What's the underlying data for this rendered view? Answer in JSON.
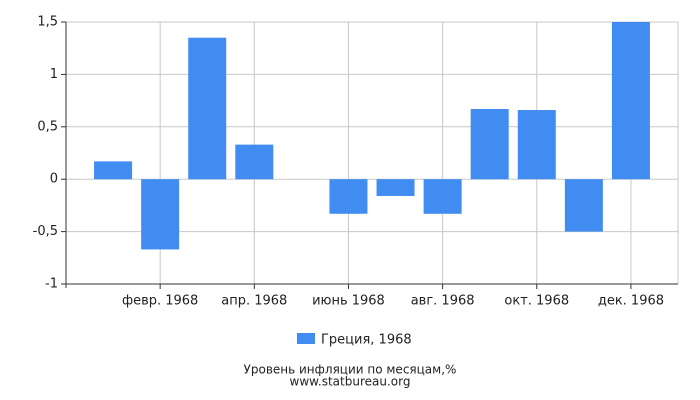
{
  "chart_data": {
    "type": "bar",
    "categories": [
      null,
      "февр. 1968",
      null,
      "апр. 1968",
      null,
      "июнь 1968",
      null,
      "авг. 1968",
      null,
      "окт. 1968",
      null,
      "дек. 1968"
    ],
    "series": [
      {
        "name": "Греция, 1968",
        "color": "#418cf0",
        "values": [
          0.17,
          -0.67,
          1.35,
          0.33,
          0,
          -0.33,
          -0.16,
          -0.33,
          0.67,
          0.66,
          -0.5,
          1.5
        ]
      }
    ],
    "ylim": [
      -1,
      1.5
    ],
    "yticks": [
      {
        "value": -1,
        "label": "-1"
      },
      {
        "value": -0.5,
        "label": "-0,5"
      },
      0,
      {
        "value": 0.5,
        "label": "0,5"
      },
      1,
      {
        "value": 1.5,
        "label": "1,5"
      }
    ],
    "grid": true,
    "caption": [
      "Уровень инфляции по месяцам,%",
      "www.statbureau.org"
    ]
  }
}
